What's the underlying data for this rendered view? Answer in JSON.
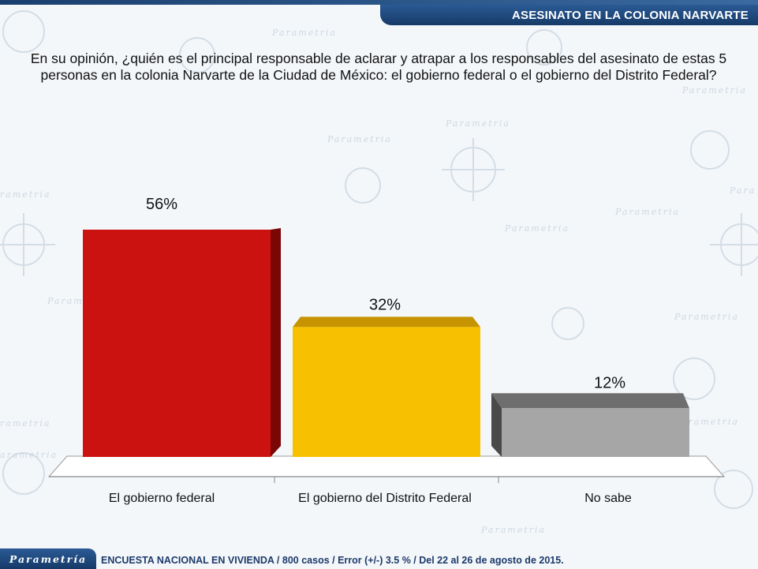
{
  "header": {
    "title": "ASESINATO EN LA COLONIA NARVARTE"
  },
  "question": "En su opinión, ¿quién es el principal responsable de aclarar y atrapar a los responsables del asesinato de estas 5 personas en la colonia Narvarte de la Ciudad de México: el gobierno federal o el gobierno del Distrito Federal?",
  "chart_data": {
    "type": "bar",
    "categories": [
      "El gobierno federal",
      "El gobierno del Distrito Federal",
      "No sabe"
    ],
    "values": [
      56,
      32,
      12
    ],
    "value_labels": [
      "56%",
      "32%",
      "12%"
    ],
    "colors": [
      "#cc1111",
      "#f7c000",
      "#a6a6a6"
    ],
    "side_colors": [
      "#7a0606",
      "#a88000",
      "#4a4a4a"
    ],
    "top_colors": [
      "#a00c0c",
      "#c69400",
      "#6e6e6e"
    ],
    "ylim": [
      0,
      56
    ],
    "grid": false,
    "style": "3d"
  },
  "footer": {
    "logo": "Parametría",
    "note": "ENCUESTA NACIONAL EN VIVIENDA / 800 casos / Error (+/-) 3.5 % / Del 22 al 26 de agosto de 2015."
  }
}
